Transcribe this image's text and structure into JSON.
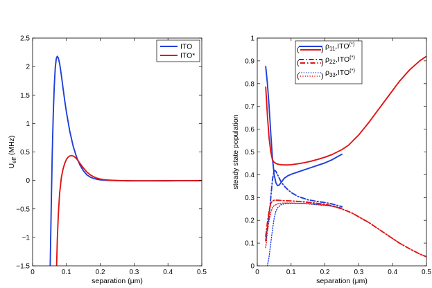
{
  "chart_data": [
    {
      "type": "line",
      "title": "",
      "xlabel": "separation (μm)",
      "ylabel": "U",
      "ylabel_sub": "eff",
      "ylabel_suffix": " (MHz)",
      "xlim": [
        0,
        0.5
      ],
      "ylim": [
        -1.5,
        2.5
      ],
      "xticks": [
        0,
        0.1,
        0.2,
        0.3,
        0.4,
        0.5
      ],
      "xtick_labels": [
        "0",
        "0.1",
        "0.2",
        "0.3",
        "0.4",
        "0.5"
      ],
      "yticks": [
        -1.5,
        -1,
        -0.5,
        0,
        0.5,
        1,
        1.5,
        2,
        2.5
      ],
      "ytick_labels": [
        "−1.5",
        "−1",
        "−0.5",
        "0",
        "0.5",
        "1",
        "1.5",
        "2",
        "2.5"
      ],
      "legend_position": "top-right",
      "series": [
        {
          "name": "ITO",
          "color": "#1f3fd9",
          "style": "solid",
          "x": [
            0.052,
            0.055,
            0.058,
            0.061,
            0.064,
            0.067,
            0.07,
            0.073,
            0.076,
            0.08,
            0.085,
            0.09,
            0.095,
            0.1,
            0.11,
            0.12,
            0.13,
            0.14,
            0.15,
            0.16,
            0.17,
            0.18,
            0.19,
            0.2,
            0.21,
            0.22,
            0.24,
            0.26,
            0.28,
            0.3,
            0.35,
            0.4,
            0.45,
            0.5
          ],
          "y": [
            -1.5,
            -0.5,
            0.45,
            1.15,
            1.65,
            1.98,
            2.14,
            2.18,
            2.15,
            2.05,
            1.85,
            1.62,
            1.4,
            1.2,
            0.86,
            0.6,
            0.41,
            0.27,
            0.17,
            0.1,
            0.06,
            0.035,
            0.02,
            0.01,
            0.005,
            0.002,
            0.0,
            -0.004,
            -0.006,
            -0.007,
            -0.007,
            -0.006,
            -0.005,
            -0.004
          ]
        },
        {
          "name": "ITO*",
          "color": "#e01414",
          "style": "solid",
          "x": [
            0.071,
            0.073,
            0.076,
            0.08,
            0.085,
            0.09,
            0.095,
            0.1,
            0.105,
            0.11,
            0.115,
            0.12,
            0.125,
            0.13,
            0.14,
            0.15,
            0.16,
            0.17,
            0.18,
            0.19,
            0.2,
            0.21,
            0.22,
            0.24,
            0.26,
            0.28,
            0.3,
            0.35,
            0.4,
            0.45,
            0.5
          ],
          "y": [
            -1.5,
            -1.05,
            -0.6,
            -0.22,
            0.05,
            0.2,
            0.3,
            0.37,
            0.41,
            0.43,
            0.435,
            0.43,
            0.41,
            0.38,
            0.3,
            0.22,
            0.15,
            0.1,
            0.065,
            0.04,
            0.025,
            0.015,
            0.008,
            0.0,
            -0.004,
            -0.006,
            -0.007,
            -0.007,
            -0.006,
            -0.005,
            -0.004
          ]
        }
      ]
    },
    {
      "type": "line",
      "title": "",
      "xlabel": "separation (μm)",
      "ylabel": "steady state population",
      "xlim": [
        0,
        0.5
      ],
      "ylim": [
        0,
        1
      ],
      "xticks": [
        0,
        0.1,
        0.2,
        0.3,
        0.4,
        0.5
      ],
      "xtick_labels": [
        "0",
        "0.1",
        "0.2",
        "0.3",
        "0.4",
        "0.5"
      ],
      "yticks": [
        0,
        0.1,
        0.2,
        0.3,
        0.4,
        0.5,
        0.6,
        0.7,
        0.8,
        0.9,
        1
      ],
      "ytick_labels": [
        "0",
        "0.1",
        "0.2",
        "0.3",
        "0.4",
        "0.5",
        "0.6",
        "0.7",
        "0.8",
        "0.9",
        "1"
      ],
      "legend_position": "top-center",
      "legend_entries": [
        {
          "symbol": "ρ",
          "sub": "11",
          "suffix": ",ITO",
          "sup": "(*)",
          "style": "solid"
        },
        {
          "symbol": "ρ",
          "sub": "22",
          "suffix": ",ITO",
          "sup": "(*)",
          "style": "dashdot"
        },
        {
          "symbol": "ρ",
          "sub": "33",
          "suffix": ",ITO",
          "sup": "(*)",
          "style": "dotted"
        }
      ],
      "series": [
        {
          "name": "ρ11, ITO",
          "color": "#1f3fd9",
          "style": "solid",
          "x": [
            0.025,
            0.03,
            0.035,
            0.04,
            0.045,
            0.05,
            0.055,
            0.06,
            0.065,
            0.07,
            0.08,
            0.09,
            0.1,
            0.12,
            0.14,
            0.16,
            0.18,
            0.2,
            0.22,
            0.25
          ],
          "y": [
            0.875,
            0.8,
            0.7,
            0.58,
            0.47,
            0.4,
            0.365,
            0.352,
            0.355,
            0.365,
            0.385,
            0.395,
            0.402,
            0.412,
            0.422,
            0.432,
            0.442,
            0.452,
            0.465,
            0.49
          ]
        },
        {
          "name": "ρ11, ITO*",
          "color": "#e01414",
          "style": "solid",
          "x": [
            0.025,
            0.03,
            0.035,
            0.04,
            0.045,
            0.05,
            0.055,
            0.06,
            0.065,
            0.07,
            0.08,
            0.09,
            0.1,
            0.12,
            0.14,
            0.16,
            0.18,
            0.2,
            0.22,
            0.25,
            0.27,
            0.3,
            0.33,
            0.36,
            0.39,
            0.42,
            0.45,
            0.48,
            0.5
          ],
          "y": [
            0.785,
            0.66,
            0.56,
            0.5,
            0.465,
            0.455,
            0.45,
            0.447,
            0.445,
            0.444,
            0.443,
            0.443,
            0.444,
            0.448,
            0.453,
            0.46,
            0.468,
            0.477,
            0.488,
            0.51,
            0.53,
            0.575,
            0.63,
            0.69,
            0.75,
            0.81,
            0.86,
            0.9,
            0.92
          ]
        },
        {
          "name": "ρ22, ITO",
          "color": "#1f3fd9",
          "style": "dashdot",
          "x": [
            0.025,
            0.03,
            0.035,
            0.04,
            0.045,
            0.05,
            0.055,
            0.06,
            0.07,
            0.08,
            0.09,
            0.1,
            0.12,
            0.15,
            0.18,
            0.2,
            0.22,
            0.25
          ],
          "y": [
            0.11,
            0.16,
            0.22,
            0.3,
            0.38,
            0.42,
            0.415,
            0.4,
            0.37,
            0.35,
            0.335,
            0.322,
            0.305,
            0.29,
            0.282,
            0.278,
            0.272,
            0.26
          ]
        },
        {
          "name": "ρ22, ITO*",
          "color": "#e01414",
          "style": "dashdot",
          "x": [
            0.025,
            0.03,
            0.035,
            0.04,
            0.045,
            0.05,
            0.06,
            0.07,
            0.08,
            0.1,
            0.12,
            0.15,
            0.18,
            0.2,
            0.22,
            0.25,
            0.28,
            0.3,
            0.33,
            0.36,
            0.39,
            0.42,
            0.45,
            0.48,
            0.5
          ],
          "y": [
            0.13,
            0.19,
            0.24,
            0.275,
            0.285,
            0.288,
            0.288,
            0.287,
            0.286,
            0.285,
            0.283,
            0.279,
            0.274,
            0.27,
            0.264,
            0.25,
            0.232,
            0.215,
            0.19,
            0.16,
            0.13,
            0.1,
            0.075,
            0.052,
            0.04
          ]
        },
        {
          "name": "ρ33, ITO",
          "color": "#1f3fd9",
          "style": "dotted",
          "x": [
            0.03,
            0.035,
            0.04,
            0.045,
            0.05,
            0.055,
            0.06,
            0.07,
            0.08,
            0.1,
            0.12,
            0.15,
            0.18,
            0.2,
            0.22,
            0.25
          ],
          "y": [
            0.0,
            0.04,
            0.1,
            0.16,
            0.21,
            0.24,
            0.255,
            0.268,
            0.272,
            0.274,
            0.274,
            0.272,
            0.268,
            0.265,
            0.262,
            0.255
          ]
        },
        {
          "name": "ρ33, ITO*",
          "color": "#e01414",
          "style": "dotted",
          "x": [
            0.025,
            0.03,
            0.035,
            0.04,
            0.045,
            0.05,
            0.06,
            0.07,
            0.08,
            0.1,
            0.12,
            0.15,
            0.18,
            0.2,
            0.22,
            0.25,
            0.28,
            0.3,
            0.33,
            0.36,
            0.39,
            0.42,
            0.45,
            0.48,
            0.5
          ],
          "y": [
            0.08,
            0.15,
            0.2,
            0.235,
            0.255,
            0.265,
            0.272,
            0.275,
            0.276,
            0.276,
            0.275,
            0.273,
            0.27,
            0.267,
            0.262,
            0.25,
            0.232,
            0.215,
            0.19,
            0.16,
            0.13,
            0.1,
            0.075,
            0.052,
            0.04
          ]
        }
      ]
    }
  ]
}
